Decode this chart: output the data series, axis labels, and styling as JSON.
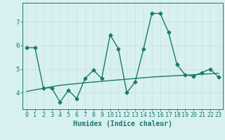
{
  "x_values": [
    0,
    1,
    2,
    3,
    4,
    5,
    6,
    7,
    8,
    9,
    10,
    11,
    12,
    13,
    14,
    15,
    16,
    17,
    18,
    19,
    20,
    21,
    22,
    23
  ],
  "y_line": [
    5.9,
    5.9,
    4.2,
    4.2,
    3.6,
    4.1,
    3.75,
    4.6,
    4.95,
    4.6,
    6.45,
    5.85,
    4.0,
    4.45,
    5.85,
    7.35,
    7.35,
    6.55,
    5.2,
    4.75,
    4.7,
    4.85,
    5.0,
    4.65
  ],
  "y_trend": [
    4.05,
    4.12,
    4.18,
    4.25,
    4.31,
    4.35,
    4.38,
    4.42,
    4.45,
    4.48,
    4.51,
    4.54,
    4.57,
    4.6,
    4.63,
    4.66,
    4.68,
    4.7,
    4.72,
    4.74,
    4.76,
    4.78,
    4.8,
    4.82
  ],
  "line_color": "#1a7a6e",
  "trend_color": "#1a7a6e",
  "bg_color": "#d8f0f0",
  "grid_color": "#c8e4e4",
  "xlabel": "Humidex (Indice chaleur)",
  "xlim": [
    -0.5,
    23.5
  ],
  "ylim": [
    3.3,
    7.8
  ],
  "yticks": [
    4,
    5,
    6,
    7
  ],
  "xticks": [
    0,
    1,
    2,
    3,
    4,
    5,
    6,
    7,
    8,
    9,
    10,
    11,
    12,
    13,
    14,
    15,
    16,
    17,
    18,
    19,
    20,
    21,
    22,
    23
  ],
  "marker": "D",
  "markersize": 2.5,
  "linewidth": 1.0,
  "trend_linewidth": 1.0,
  "xlabel_fontsize": 7,
  "tick_fontsize": 6
}
